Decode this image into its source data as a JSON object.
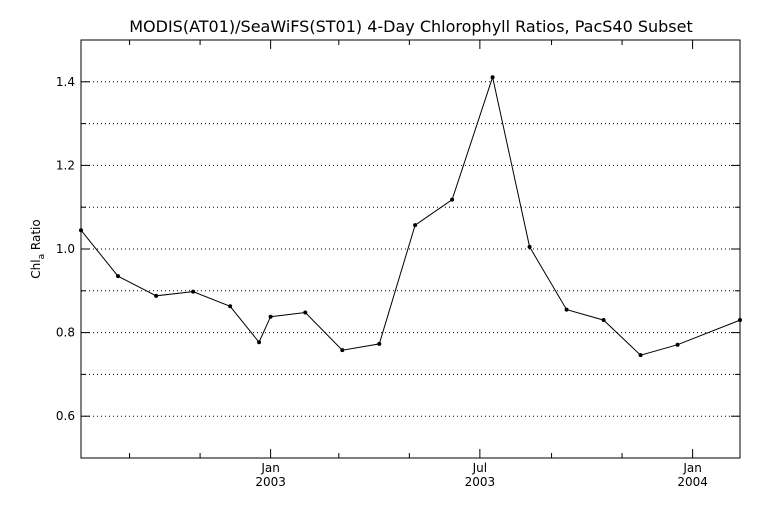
{
  "chart_data": {
    "type": "line",
    "title": "MODIS(AT01)/SeaWiFS(ST01) 4-Day Chlorophyll Ratios, PacS40 Subset",
    "ylabel": {
      "main": "Chl",
      "sub": "a",
      "rest": " Ratio"
    },
    "xlabel": "",
    "ylim": [
      0.5,
      1.5
    ],
    "yticks_major": [
      0.6,
      0.8,
      1.0,
      1.2,
      1.4
    ],
    "yticks_major_labels": [
      "0.6",
      "0.8",
      "1.0",
      "1.2",
      "1.4"
    ],
    "yticks_minor": [
      0.5,
      0.7,
      0.9,
      1.1,
      1.3
    ],
    "gridlines_y": [
      0.6,
      0.7,
      0.8,
      0.9,
      1.0,
      1.1,
      1.2,
      1.3,
      1.4
    ],
    "grid": "horizontal-dotted",
    "xlim": [
      "2002-07-21",
      "2004-02-11"
    ],
    "xticks_major": [
      {
        "date": "2003-01-01",
        "month": "Jan",
        "year": "2003"
      },
      {
        "date": "2003-07-01",
        "month": "Jul",
        "year": "2003"
      },
      {
        "date": "2004-01-01",
        "month": "Jan",
        "year": "2004"
      }
    ],
    "xticks_minor": [
      "2002-09-01",
      "2002-11-01",
      "2003-03-01",
      "2003-05-01",
      "2003-09-01",
      "2003-11-01"
    ],
    "series": [
      {
        "color": "#000000",
        "marker": "dot",
        "points": [
          {
            "x": "2002-07-21",
            "y": 1.045
          },
          {
            "x": "2002-08-22",
            "y": 0.935
          },
          {
            "x": "2002-09-24",
            "y": 0.888
          },
          {
            "x": "2002-10-26",
            "y": 0.898
          },
          {
            "x": "2002-11-27",
            "y": 0.863
          },
          {
            "x": "2002-12-22",
            "y": 0.777
          },
          {
            "x": "2003-01-01",
            "y": 0.838
          },
          {
            "x": "2003-01-31",
            "y": 0.848
          },
          {
            "x": "2003-03-04",
            "y": 0.758
          },
          {
            "x": "2003-04-05",
            "y": 0.773
          },
          {
            "x": "2003-05-06",
            "y": 1.057
          },
          {
            "x": "2003-06-07",
            "y": 1.118
          },
          {
            "x": "2003-07-12",
            "y": 1.411
          },
          {
            "x": "2003-08-13",
            "y": 1.005
          },
          {
            "x": "2003-09-14",
            "y": 0.855
          },
          {
            "x": "2003-10-16",
            "y": 0.83
          },
          {
            "x": "2003-11-17",
            "y": 0.746
          },
          {
            "x": "2003-12-19",
            "y": 0.771
          },
          {
            "x": "2004-02-11",
            "y": 0.83
          }
        ]
      }
    ]
  }
}
